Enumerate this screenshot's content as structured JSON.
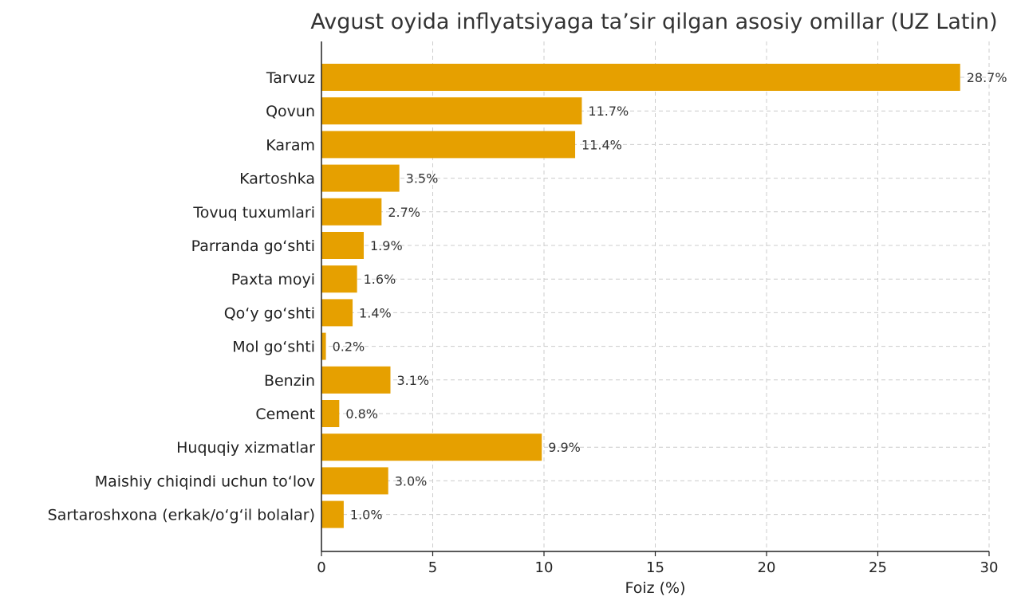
{
  "chart_data": {
    "type": "bar",
    "orientation": "horizontal",
    "title": "Avgust oyida inflyatsiyaga ta’sir qilgan asosiy omillar (UZ Latin)",
    "xlabel": "Foiz (%)",
    "ylabel": "",
    "xlim": [
      0,
      30
    ],
    "x_ticks": [
      0,
      5,
      10,
      15,
      20,
      25,
      30
    ],
    "grid": true,
    "bar_color": "#E6A000",
    "categories": [
      "Tarvuz",
      "Qovun",
      "Karam",
      "Kartoshka",
      "Tovuq tuxumlari",
      "Parranda go‘shti",
      "Paxta moyi",
      "Qo‘y go‘shti",
      "Mol go‘shti",
      "Benzin",
      "Cement",
      "Huquqiy xizmatlar",
      "Maishiy chiqindi uchun to‘lov",
      "Sartaroshxona (erkak/o‘g‘il bolalar)"
    ],
    "values": [
      28.7,
      11.7,
      11.4,
      3.5,
      2.7,
      1.9,
      1.6,
      1.4,
      0.2,
      3.1,
      0.8,
      9.9,
      3.0,
      1.0
    ],
    "value_labels": [
      "28.7%",
      "11.7%",
      "11.4%",
      "3.5%",
      "2.7%",
      "1.9%",
      "1.6%",
      "1.4%",
      "0.2%",
      "3.1%",
      "0.8%",
      "9.9%",
      "3.0%",
      "1.0%"
    ]
  }
}
